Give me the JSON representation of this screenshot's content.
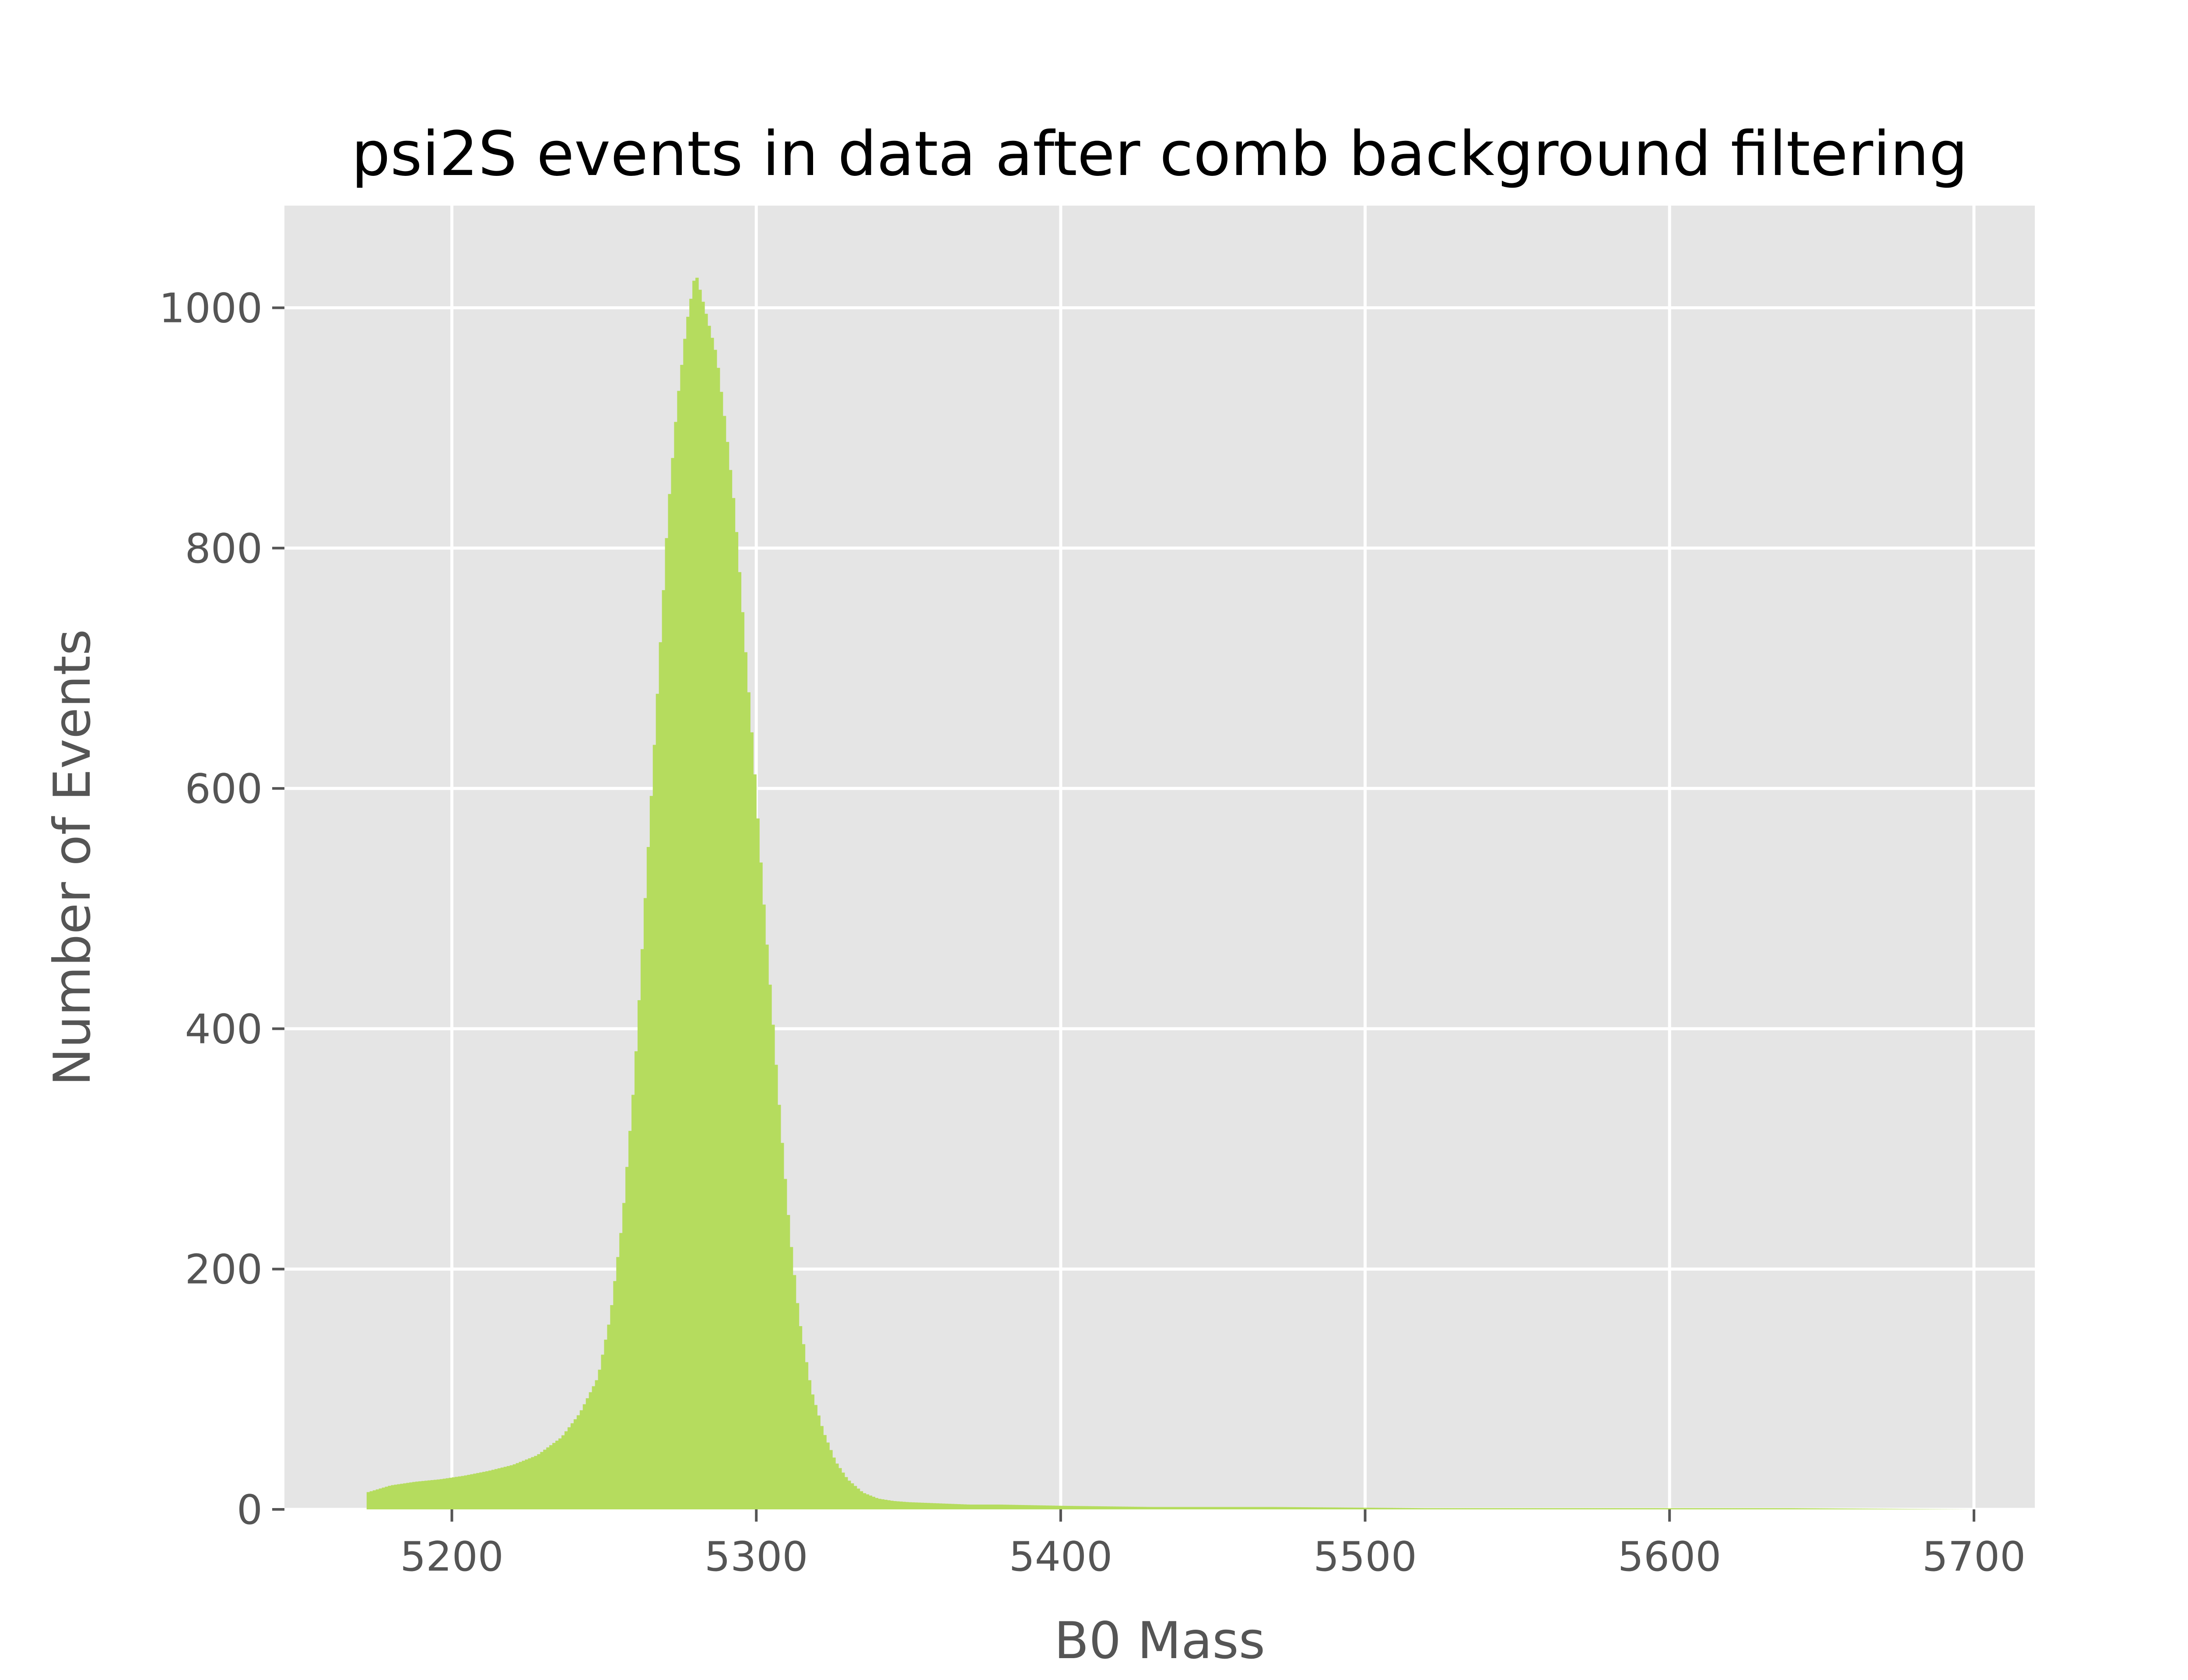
{
  "chart_data": {
    "type": "bar",
    "title": "psi2S events in data after comb background filtering",
    "xlabel": "B0 Mass",
    "ylabel": "Number of Events",
    "xlim": [
      5145,
      5720
    ],
    "ylim": [
      0,
      1085
    ],
    "xticks": [
      5200,
      5300,
      5400,
      5500,
      5600,
      5700
    ],
    "yticks": [
      0,
      200,
      400,
      600,
      800,
      1000
    ],
    "grid": true,
    "bin_width": 1,
    "colors": {
      "bar": "#b5dc5e",
      "plot_background": "#e5e5e5",
      "grid": "#ffffff",
      "tick": "#555555",
      "text": "#555555"
    },
    "series": [
      {
        "x": [
          5172,
          5180,
          5188,
          5196,
          5204,
          5212,
          5220,
          5228,
          5236,
          5242,
          5248,
          5252,
          5256,
          5260,
          5264,
          5268,
          5271,
          5274,
          5277,
          5280,
          5282,
          5284,
          5287,
          5290,
          5293,
          5296,
          5299,
          5302,
          5305,
          5308,
          5311,
          5314,
          5318,
          5322,
          5326,
          5330,
          5335,
          5340,
          5345,
          5350,
          5360,
          5370,
          5380,
          5400,
          5430,
          5470,
          5520,
          5580,
          5640,
          5700
        ],
        "values": [
          14,
          20,
          23,
          25,
          28,
          32,
          37,
          45,
          60,
          80,
          110,
          160,
          240,
          360,
          530,
          700,
          830,
          920,
          985,
          1030,
          1010,
          990,
          960,
          900,
          830,
          730,
          630,
          520,
          420,
          320,
          230,
          160,
          100,
          65,
          40,
          25,
          14,
          9,
          7,
          6,
          5,
          4,
          4,
          3,
          2,
          2,
          1,
          1,
          1,
          0
        ]
      }
    ]
  }
}
